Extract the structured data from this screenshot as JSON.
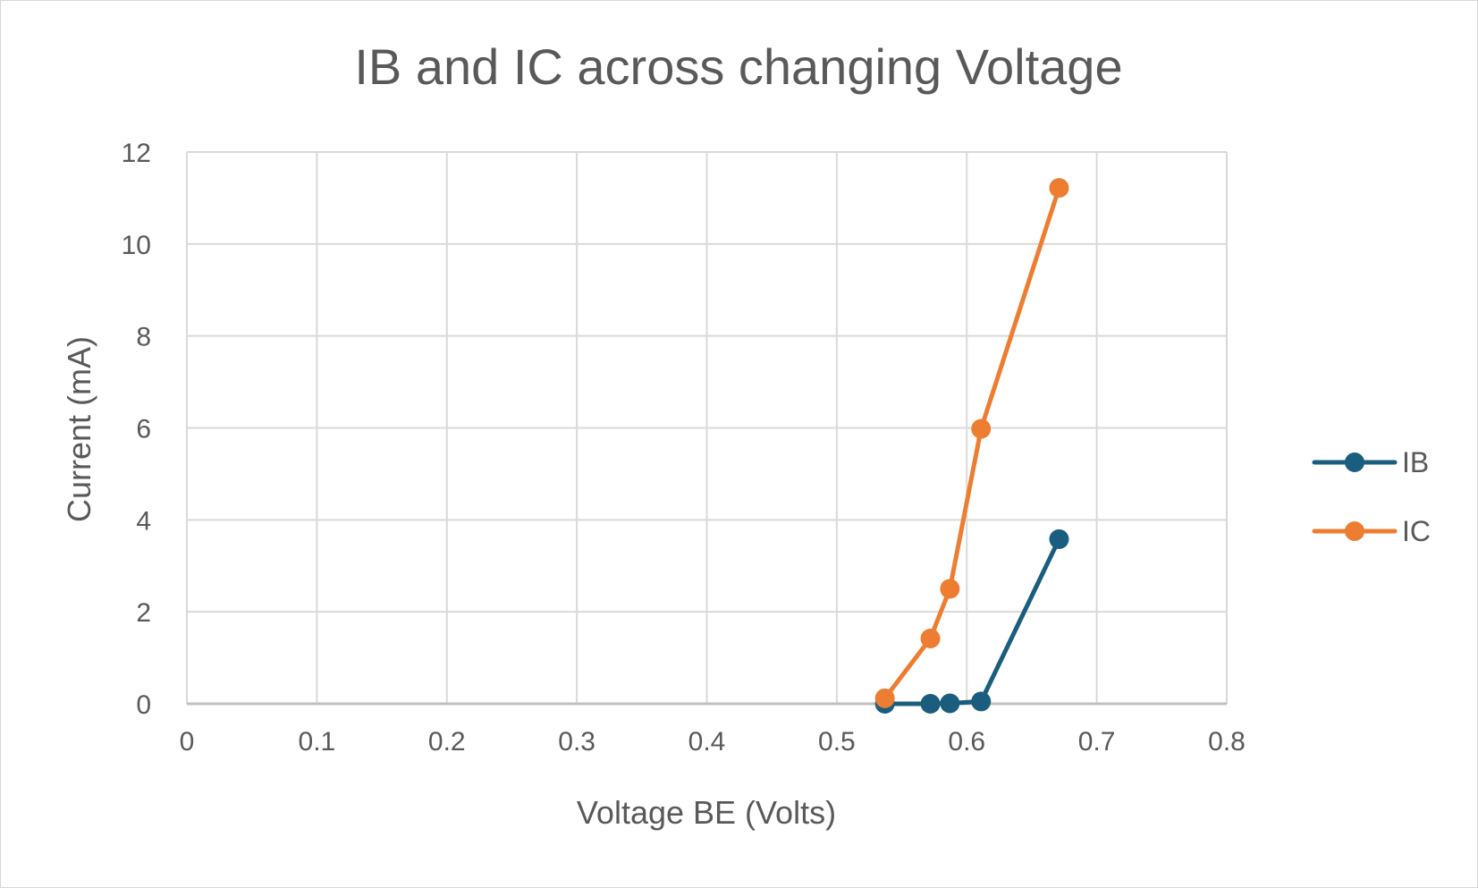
{
  "chart_data": {
    "type": "scatter",
    "title": "IB and IC across changing Voltage",
    "xlabel": "Voltage BE (Volts)",
    "ylabel": "Current (mA)",
    "xlim": [
      0,
      0.8
    ],
    "ylim": [
      0,
      12
    ],
    "xticks": [
      0,
      0.1,
      0.2,
      0.3,
      0.4,
      0.5,
      0.6,
      0.7,
      0.8
    ],
    "xtick_labels": [
      "0",
      "0.1",
      "0.2",
      "0.3",
      "0.4",
      "0.5",
      "0.6",
      "0.7",
      "0.8"
    ],
    "yticks": [
      0,
      2,
      4,
      6,
      8,
      10,
      12
    ],
    "ytick_labels": [
      "0",
      "2",
      "4",
      "6",
      "8",
      "10",
      "12"
    ],
    "grid": true,
    "legend_position": "right",
    "lines_with_markers": true,
    "series": [
      {
        "name": "IB",
        "color": "#1a5d7e",
        "x": [
          0.537,
          0.572,
          0.587,
          0.611,
          0.671
        ],
        "y": [
          0.0,
          0.0,
          0.01,
          0.05,
          3.58
        ]
      },
      {
        "name": "IC",
        "color": "#ed7d31",
        "x": [
          0.537,
          0.572,
          0.587,
          0.611,
          0.671
        ],
        "y": [
          0.12,
          1.42,
          2.5,
          5.98,
          11.22
        ]
      }
    ]
  }
}
